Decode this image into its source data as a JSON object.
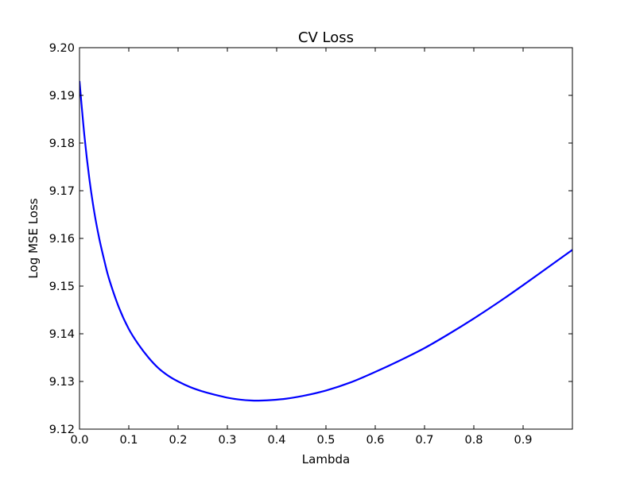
{
  "chart_data": {
    "type": "line",
    "title": "CV Loss",
    "xlabel": "Lambda",
    "ylabel": "Log MSE Loss",
    "xlim": [
      0.0,
      1.0
    ],
    "ylim": [
      9.12,
      9.2
    ],
    "xticks": [
      0.0,
      0.1,
      0.2,
      0.3,
      0.4,
      0.5,
      0.6,
      0.7,
      0.8,
      0.9
    ],
    "xtick_labels": [
      "0.0",
      "0.1",
      "0.2",
      "0.3",
      "0.4",
      "0.5",
      "0.6",
      "0.7",
      "0.8",
      "0.9"
    ],
    "yticks": [
      9.12,
      9.13,
      9.14,
      9.15,
      9.16,
      9.17,
      9.18,
      9.19,
      9.2
    ],
    "ytick_labels": [
      "9.12",
      "9.13",
      "9.14",
      "9.15",
      "9.16",
      "9.17",
      "9.18",
      "9.19",
      "9.20"
    ],
    "grid": false,
    "legend": "none",
    "series": [
      {
        "color": "#0000ff",
        "x": [
          0.0,
          0.01,
          0.02,
          0.03,
          0.04,
          0.05,
          0.06,
          0.08,
          0.1,
          0.12,
          0.14,
          0.16,
          0.18,
          0.2,
          0.225,
          0.25,
          0.275,
          0.3,
          0.325,
          0.35,
          0.37,
          0.39,
          0.42,
          0.45,
          0.5,
          0.55,
          0.6,
          0.65,
          0.7,
          0.75,
          0.8,
          0.85,
          0.9,
          0.95,
          1.0
        ],
        "y": [
          9.193,
          9.1815,
          9.1725,
          9.1655,
          9.16,
          9.1555,
          9.1515,
          9.1455,
          9.141,
          9.1377,
          9.135,
          9.1328,
          9.1312,
          9.13,
          9.1288,
          9.1279,
          9.1272,
          9.1266,
          9.1262,
          9.126,
          9.126,
          9.1261,
          9.1264,
          9.1269,
          9.1281,
          9.1298,
          9.132,
          9.1344,
          9.137,
          9.14,
          9.1432,
          9.1466,
          9.1502,
          9.1539,
          9.1576
        ]
      }
    ]
  }
}
